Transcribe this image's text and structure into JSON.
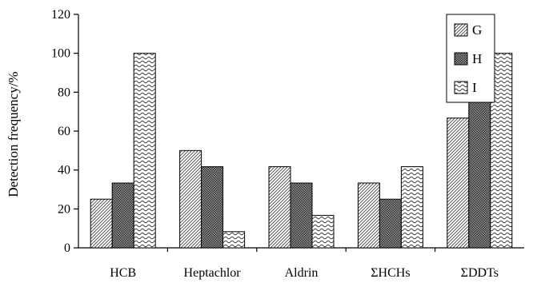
{
  "chart_data": {
    "type": "bar",
    "title": "",
    "xlabel": "",
    "ylabel": "Detection frequency/%",
    "ylim": [
      0,
      120
    ],
    "yticks": [
      0,
      20,
      40,
      60,
      80,
      100,
      120
    ],
    "grid": false,
    "legend_position": "top-right",
    "categories": [
      "HCB",
      "Heptachlor",
      "Aldrin",
      "ΣHCHs",
      "ΣDDTs"
    ],
    "series": [
      {
        "name": "G",
        "pattern": "diagonal-hatch",
        "values": [
          25,
          50,
          41.7,
          33.3,
          66.7
        ]
      },
      {
        "name": "H",
        "pattern": "crosshatch-dark",
        "values": [
          33.3,
          41.7,
          33.3,
          25,
          75
        ]
      },
      {
        "name": "I",
        "pattern": "wavy",
        "values": [
          100,
          8.3,
          16.7,
          41.7,
          100
        ]
      }
    ]
  }
}
